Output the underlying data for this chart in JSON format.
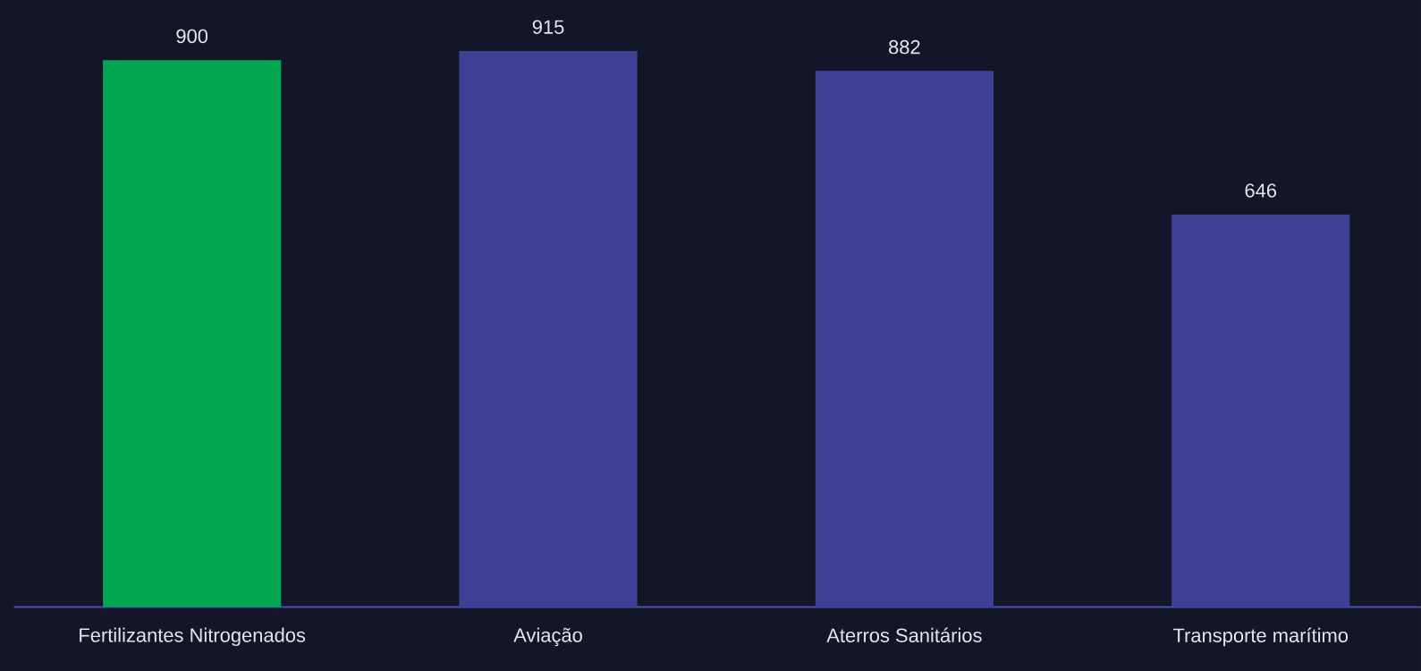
{
  "chart_data": {
    "type": "bar",
    "categories": [
      "Fertilizantes Nitrogenados",
      "Aviação",
      "Aterros Sanitários",
      "Transporte marítimo"
    ],
    "values": [
      900,
      915,
      882,
      646
    ],
    "colors": [
      "#00a651",
      "#3f3f95",
      "#3f3f95",
      "#3f3f95"
    ],
    "data_labels": true
  }
}
